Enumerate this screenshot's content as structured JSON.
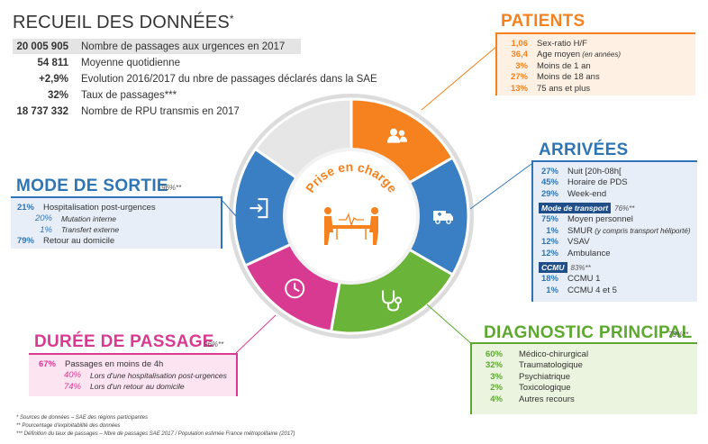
{
  "recueil": {
    "title": "RECUEIL DES DONNÉES",
    "title_star": "*",
    "rows": [
      {
        "value": "20 005 905",
        "label": "Nombre de passages aux urgences en 2017"
      },
      {
        "value": "54 811",
        "label": "Moyenne quotidienne"
      },
      {
        "value": "+2,9%",
        "label": "Evolution 2016/2017 du nbre de passages déclarés dans la SAE"
      },
      {
        "value": "32%",
        "label": "Taux de passages***"
      },
      {
        "value": "18 737 332",
        "label": "Nombre de RPU transmis en 2017"
      }
    ]
  },
  "patients": {
    "title": "PATIENTS",
    "color": "#f5821f",
    "rows": [
      {
        "value": "1,06",
        "label": "Sex-ratio H/F"
      },
      {
        "value": "36,4",
        "label": "Age moyen",
        "italic": "(en années)"
      },
      {
        "value": "3%",
        "label": "Moins de 1 an"
      },
      {
        "value": "27%",
        "label": "Moins de 18 ans"
      },
      {
        "value": "13%",
        "label": "75 ans et plus"
      }
    ]
  },
  "arrivees": {
    "title": "ARRIVÉES",
    "color": "#2e75b6",
    "rows": [
      {
        "value": "27%",
        "label": "Nuit [20h-08h["
      },
      {
        "value": "45%",
        "label": "Horaire de PDS"
      },
      {
        "value": "29%",
        "label": "Week-end"
      }
    ],
    "transport_tag": "Mode de transport",
    "transport_note": "76%**",
    "transport_rows": [
      {
        "value": "75%",
        "label": "Moyen personnel"
      },
      {
        "value": "1%",
        "label": "SMUR",
        "italic": "(y compris transport héliporté)"
      },
      {
        "value": "12%",
        "label": "VSAV"
      },
      {
        "value": "12%",
        "label": "Ambulance"
      }
    ],
    "ccmu_tag": "CCMU",
    "ccmu_note": "83%**",
    "ccmu_rows": [
      {
        "value": "18%",
        "label": "CCMU 1"
      },
      {
        "value": "1%",
        "label": "CCMU 4 et 5"
      }
    ]
  },
  "sortie": {
    "title": "MODE DE SORTIE",
    "note": "96%**",
    "color": "#2e75b6",
    "rows": [
      {
        "value": "21%",
        "label": "Hospitalisation post-urgences",
        "sub": false
      },
      {
        "value": "20%",
        "label": "Mutation interne",
        "sub": true
      },
      {
        "value": "1%",
        "label": "Transfert externe",
        "sub": true
      },
      {
        "value": "79%",
        "label": "Retour au domicile",
        "sub": false
      }
    ]
  },
  "duree": {
    "title": "DURÉE DE PASSAGE",
    "note": "96%**",
    "color": "#d93a91",
    "rows": [
      {
        "value": "67%",
        "label": "Passages en moins de 4h",
        "sub": false
      },
      {
        "value": "40%",
        "label": "Lors d'une hospitalisation post-urgences",
        "sub": true
      },
      {
        "value": "74%",
        "label": "Lors d'un retour au domicile",
        "sub": true
      }
    ]
  },
  "diagnostic": {
    "title": "DIAGNOSTIC PRINCIPAL",
    "note": "73%**",
    "color": "#5da82f",
    "rows": [
      {
        "value": "60%",
        "label": "Médico-chirurgical"
      },
      {
        "value": "32%",
        "label": "Traumatologique"
      },
      {
        "value": "3%",
        "label": "Psychiatrique"
      },
      {
        "value": "2%",
        "label": "Toxicologique"
      },
      {
        "value": "4%",
        "label": "Autres recours"
      }
    ]
  },
  "center": {
    "title": "Prise en charge",
    "title_color": "#f5821f"
  },
  "wheel_colors": {
    "patients": "#f5821f",
    "arrivees": "#3a7fc4",
    "diagnostic": "#6bb43a",
    "duree": "#d93a91",
    "sortie": "#3a7fc4",
    "top": "#e6e6e6",
    "ring": "#dcdcdc"
  },
  "icons": {
    "patients": "users-icon",
    "arrivees": "ambulance-icon",
    "diagnostic": "stethoscope-icon",
    "duree": "clock-icon",
    "sortie": "exit-door-icon",
    "center": "stretcher-icon"
  },
  "footnotes": [
    "* Sources de données – SAE des régions participantes",
    "** Pourcentage d'exploitabilité des données",
    "*** Définition du taux de passages – Nbre de passages SAE 2017 / Population estimée France métropolitaine (2017)"
  ]
}
